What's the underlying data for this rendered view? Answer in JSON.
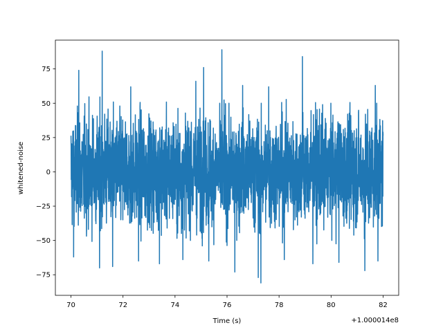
{
  "chart_data": {
    "type": "line",
    "title": "",
    "xlabel": "Time (s)",
    "ylabel": "whitened-noise",
    "x_offset_label": "+1.000014e8",
    "xlim": [
      69.4,
      82.6
    ],
    "ylim": [
      -90,
      96
    ],
    "x_ticks": [
      70,
      72,
      74,
      76,
      78,
      80,
      82
    ],
    "x_tick_labels": [
      "70",
      "72",
      "74",
      "76",
      "78",
      "80",
      "82"
    ],
    "y_ticks": [
      -75,
      -50,
      -25,
      0,
      25,
      50,
      75
    ],
    "y_tick_labels": [
      "−75",
      "−50",
      "−25",
      "0",
      "25",
      "50",
      "75"
    ],
    "grid": false,
    "series": [
      {
        "color": "#1f77b4",
        "x_start": 70.0,
        "x_end": 82.0,
        "envelope": {
          "typical_max": 45,
          "typical_min": -45,
          "rms": 20
        },
        "peaks": [
          {
            "x": 70.3,
            "y": 74
          },
          {
            "x": 71.2,
            "y": 88
          },
          {
            "x": 72.3,
            "y": 62
          },
          {
            "x": 73.4,
            "y": 66
          },
          {
            "x": 74.3,
            "y": 61
          },
          {
            "x": 74.8,
            "y": 66
          },
          {
            "x": 75.1,
            "y": 76
          },
          {
            "x": 75.8,
            "y": 89
          },
          {
            "x": 76.6,
            "y": 63
          },
          {
            "x": 77.6,
            "y": 62
          },
          {
            "x": 78.9,
            "y": 84
          },
          {
            "x": 79.3,
            "y": 64
          },
          {
            "x": 80.3,
            "y": 64
          },
          {
            "x": 81.7,
            "y": 63
          }
        ],
        "troughs": [
          {
            "x": 70.1,
            "y": -62
          },
          {
            "x": 71.1,
            "y": -70
          },
          {
            "x": 71.6,
            "y": -69
          },
          {
            "x": 72.6,
            "y": -65
          },
          {
            "x": 73.4,
            "y": -67
          },
          {
            "x": 74.3,
            "y": -64
          },
          {
            "x": 75.3,
            "y": -65
          },
          {
            "x": 76.3,
            "y": -73
          },
          {
            "x": 77.2,
            "y": -77
          },
          {
            "x": 77.3,
            "y": -81
          },
          {
            "x": 78.2,
            "y": -64
          },
          {
            "x": 79.3,
            "y": -67
          },
          {
            "x": 80.3,
            "y": -66
          },
          {
            "x": 81.3,
            "y": -72
          },
          {
            "x": 81.8,
            "y": -65
          }
        ]
      }
    ]
  }
}
